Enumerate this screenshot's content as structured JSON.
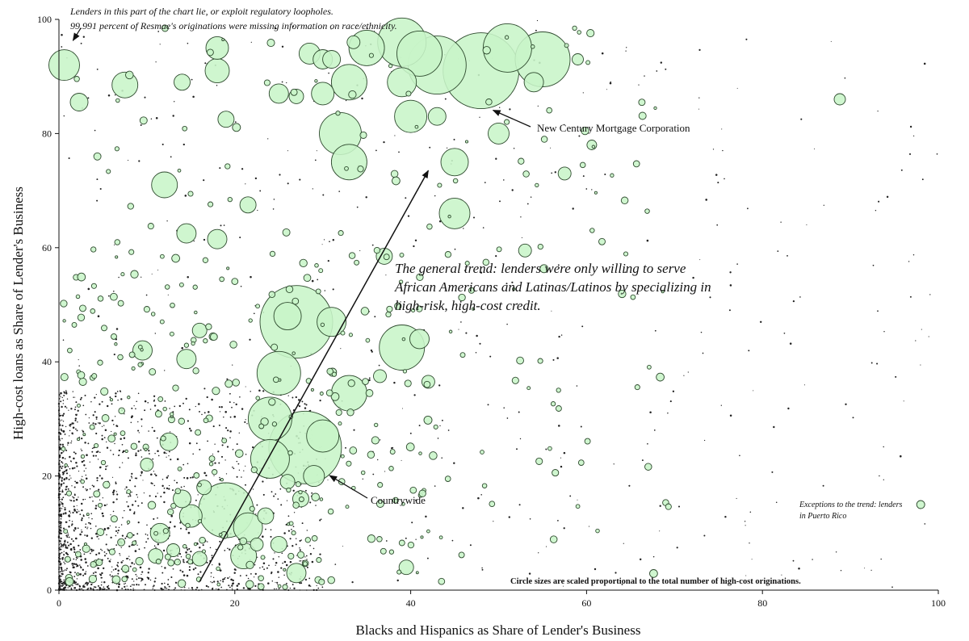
{
  "chart_data": {
    "type": "scatter",
    "xlabel": "Blacks and Hispanics as Share of Lender's Business",
    "ylabel": "High-cost loans as Share of Lender's Business",
    "xlim": [
      0,
      100
    ],
    "ylim": [
      0,
      100
    ],
    "xticks": [
      "0",
      "20",
      "40",
      "60",
      "80",
      "100"
    ],
    "yticks": [
      "0",
      "20",
      "40",
      "60",
      "80",
      "100"
    ],
    "grid": false,
    "legend": "none",
    "size_note": "Circle sizes are scaled proportional to the total number of high-cost originations.",
    "annotations": {
      "loophole_line1": "Lenders in this part of the chart lie, or exploit regulatory loopholes.",
      "loophole_line2": "99.991 percent of Resmae's originations were missing information on race/ethnicity.",
      "new_century": "New Century Mortgage Corporation",
      "countrywide": "Countrywide",
      "trend_line1": "The general trend:  lenders were only willing to serve",
      "trend_line2": "African Americans and Latinas/Latinos by specializing in",
      "trend_line3": "high-risk, high-cost credit.",
      "pr_line1": "Exceptions to the trend:  lenders",
      "pr_line2": "in Puerto Rico"
    },
    "bubbles": [
      {
        "x": 0.6,
        "y": 92,
        "r": 19
      },
      {
        "x": 48,
        "y": 91,
        "r": 47
      },
      {
        "x": 43,
        "y": 92,
        "r": 36
      },
      {
        "x": 39,
        "y": 96,
        "r": 30
      },
      {
        "x": 51,
        "y": 95,
        "r": 30
      },
      {
        "x": 55,
        "y": 93,
        "r": 34
      },
      {
        "x": 41,
        "y": 94,
        "r": 28
      },
      {
        "x": 35,
        "y": 95,
        "r": 22
      },
      {
        "x": 39,
        "y": 89,
        "r": 18
      },
      {
        "x": 40,
        "y": 83,
        "r": 20
      },
      {
        "x": 33,
        "y": 89,
        "r": 22
      },
      {
        "x": 30,
        "y": 87,
        "r": 14
      },
      {
        "x": 30,
        "y": 93,
        "r": 12
      },
      {
        "x": 32,
        "y": 80,
        "r": 26
      },
      {
        "x": 33,
        "y": 75,
        "r": 22
      },
      {
        "x": 45,
        "y": 75,
        "r": 17
      },
      {
        "x": 45,
        "y": 66,
        "r": 19
      },
      {
        "x": 50,
        "y": 80,
        "r": 13
      },
      {
        "x": 43,
        "y": 83,
        "r": 11
      },
      {
        "x": 54,
        "y": 89,
        "r": 12
      },
      {
        "x": 57.5,
        "y": 73,
        "r": 8
      },
      {
        "x": 59,
        "y": 93,
        "r": 7
      },
      {
        "x": 27,
        "y": 47,
        "r": 45
      },
      {
        "x": 26,
        "y": 48,
        "r": 17
      },
      {
        "x": 31,
        "y": 47,
        "r": 18
      },
      {
        "x": 25,
        "y": 38,
        "r": 27
      },
      {
        "x": 28,
        "y": 25,
        "r": 45
      },
      {
        "x": 24,
        "y": 30,
        "r": 27
      },
      {
        "x": 24,
        "y": 23,
        "r": 24
      },
      {
        "x": 30,
        "y": 27,
        "r": 20
      },
      {
        "x": 33,
        "y": 34.5,
        "r": 22
      },
      {
        "x": 39,
        "y": 42.5,
        "r": 28
      },
      {
        "x": 41,
        "y": 44,
        "r": 12
      },
      {
        "x": 19,
        "y": 14,
        "r": 34
      },
      {
        "x": 21.5,
        "y": 11,
        "r": 18
      },
      {
        "x": 21,
        "y": 6,
        "r": 16
      },
      {
        "x": 15,
        "y": 13,
        "r": 14
      },
      {
        "x": 14,
        "y": 16,
        "r": 11
      },
      {
        "x": 16.5,
        "y": 18,
        "r": 9
      },
      {
        "x": 11.5,
        "y": 10,
        "r": 12
      },
      {
        "x": 11,
        "y": 6,
        "r": 9
      },
      {
        "x": 13,
        "y": 7,
        "r": 8
      },
      {
        "x": 27,
        "y": 3,
        "r": 12
      },
      {
        "x": 39.5,
        "y": 4,
        "r": 9
      },
      {
        "x": 29,
        "y": 20,
        "r": 13
      },
      {
        "x": 23.5,
        "y": 13,
        "r": 10
      },
      {
        "x": 25,
        "y": 8,
        "r": 10
      },
      {
        "x": 27.5,
        "y": 16,
        "r": 10
      },
      {
        "x": 26,
        "y": 19,
        "r": 9
      },
      {
        "x": 7.5,
        "y": 88.5,
        "r": 16
      },
      {
        "x": 2.3,
        "y": 85.5,
        "r": 11
      },
      {
        "x": 18,
        "y": 95,
        "r": 14
      },
      {
        "x": 18,
        "y": 91,
        "r": 15
      },
      {
        "x": 14,
        "y": 89,
        "r": 10
      },
      {
        "x": 19,
        "y": 82.5,
        "r": 10
      },
      {
        "x": 12,
        "y": 71,
        "r": 16
      },
      {
        "x": 21.5,
        "y": 67.5,
        "r": 10
      },
      {
        "x": 14.5,
        "y": 62.5,
        "r": 12
      },
      {
        "x": 18,
        "y": 61.5,
        "r": 12
      },
      {
        "x": 9.5,
        "y": 42,
        "r": 12
      },
      {
        "x": 14.5,
        "y": 40.5,
        "r": 12
      },
      {
        "x": 16,
        "y": 45.5,
        "r": 9
      },
      {
        "x": 12.5,
        "y": 26,
        "r": 11
      },
      {
        "x": 10,
        "y": 22,
        "r": 8
      },
      {
        "x": 25,
        "y": 87,
        "r": 12
      },
      {
        "x": 27,
        "y": 86.5,
        "r": 9
      },
      {
        "x": 28.5,
        "y": 94,
        "r": 13
      },
      {
        "x": 31,
        "y": 93,
        "r": 11
      },
      {
        "x": 37,
        "y": 58.5,
        "r": 10
      },
      {
        "x": 36.5,
        "y": 37.5,
        "r": 8
      },
      {
        "x": 42,
        "y": 36.5,
        "r": 8
      },
      {
        "x": 53,
        "y": 59.5,
        "r": 8
      },
      {
        "x": 98,
        "y": 15,
        "r": 5
      },
      {
        "x": 88.8,
        "y": 86,
        "r": 7
      },
      {
        "x": 60.6,
        "y": 78,
        "r": 6
      },
      {
        "x": 33.5,
        "y": 96,
        "r": 8
      },
      {
        "x": 22.5,
        "y": 8,
        "r": 8
      },
      {
        "x": 16,
        "y": 5.5,
        "r": 9
      }
    ],
    "countrywide_point": {
      "x": 30.5,
      "y": 20.5
    },
    "new_century_point": {
      "x": 49,
      "y": 84.5
    },
    "trend_arrow": {
      "x0": 16,
      "y0": 1.5,
      "x1": 42,
      "y1": 73.5
    },
    "loophole_arrow": {
      "x0": 2.5,
      "y0": 98.5,
      "x1": 1.6,
      "y1": 96.3
    }
  }
}
